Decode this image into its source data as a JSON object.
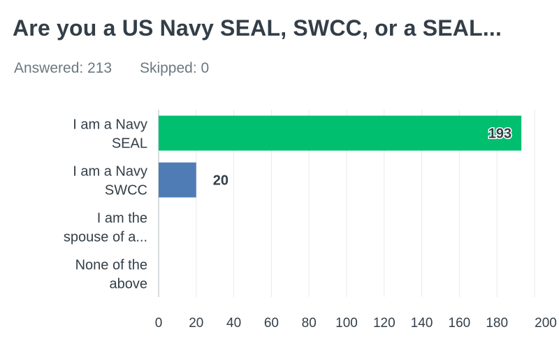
{
  "question": {
    "title": "Are you a US Navy SEAL, SWCC, or a SEAL...",
    "answered": "Answered: 213",
    "skipped": "Skipped: 0"
  },
  "chart_data": {
    "type": "bar",
    "orientation": "horizontal",
    "categories": [
      [
        "I am a Navy",
        "SEAL"
      ],
      [
        "I am a Navy",
        "SWCC"
      ],
      [
        "I am the",
        "spouse of a..."
      ],
      [
        "None of the",
        "above"
      ]
    ],
    "values": [
      193,
      20,
      0,
      0
    ],
    "bar_colors": [
      "#00bf6f",
      "#507cb6",
      "#507cb6",
      "#507cb6"
    ],
    "xlim": [
      0,
      200
    ],
    "xticks": [
      0,
      20,
      40,
      60,
      80,
      100,
      120,
      140,
      160,
      180,
      200
    ],
    "tick_labels": [
      "0",
      "20",
      "40",
      "60",
      "80",
      "100",
      "120",
      "140",
      "160",
      "180",
      "200"
    ],
    "grid": true,
    "legend": "none",
    "xlabel": "",
    "ylabel": ""
  }
}
